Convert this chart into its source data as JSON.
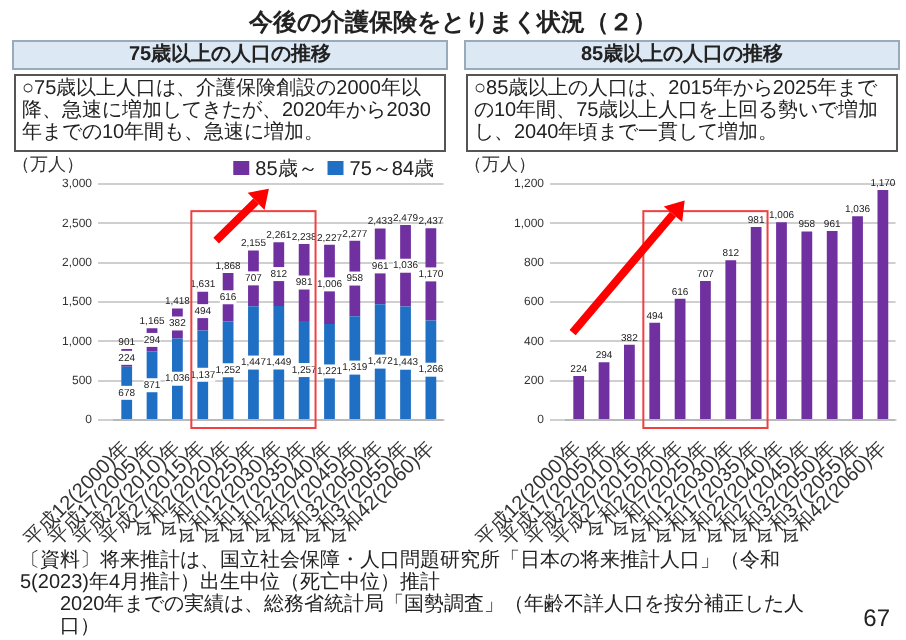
{
  "chart_data": [
    {
      "type": "other",
      "title": "今後の介護保険をとりまく状況（２）",
      "annotations": [
        "〔資料〕将来推計は、国立社会保障・人口問題研究所「日本の将来推計人口」（令和5(2023)年4月推計）出生中位（死亡中位）推計",
        "2020年までの実績は、総務省統計局「国勢調査」（年齢不詳人口を按分補正した人口）",
        "67"
      ]
    },
    {
      "type": "bar",
      "title": "75歳以上の人口の推移",
      "subtitle": "○75歳以上人口は、介護保険創設の2000年以降、急速に増加してきたが、2020年から2030年までの10年間も、急速に増加。",
      "ylabel": "（万人）",
      "categories": [
        "平成12(2000)年",
        "平成17(2005)年",
        "平成22(2010)年",
        "平成27(2015)年",
        "令和2(2020)年",
        "令和7(2025)年",
        "令和12(2030)年",
        "令和17(2035)年",
        "令和22(2040)年",
        "令和27(2045)年",
        "令和32(2050)年",
        "令和37(2055)年",
        "令和42(2060)年"
      ],
      "stacked": true,
      "series": [
        {
          "name": "75～84歳",
          "color": "#1f6fc4",
          "values": [
            678,
            871,
            1036,
            1137,
            1252,
            1447,
            1449,
            1257,
            1221,
            1319,
            1472,
            1443,
            1266
          ],
          "value_labels": [
            "678",
            "871",
            "1,036",
            "1,137",
            "1,252",
            "1,447",
            "1,449",
            "1,257",
            "1,221",
            "1,319",
            "1,472",
            "1,443",
            "1,266"
          ]
        },
        {
          "name": "85歳～",
          "color": "#7030a0",
          "values": [
            224,
            294,
            382,
            494,
            616,
            707,
            812,
            981,
            1006,
            958,
            961,
            1036,
            1170
          ],
          "value_labels": [
            "224",
            "294",
            "382",
            "494",
            "616",
            "707",
            "812",
            "981",
            "1,006",
            "958",
            "961",
            "1,036",
            "1,170"
          ]
        }
      ],
      "totals": [
        "901",
        "1,165",
        "1,418",
        "1,631",
        "1,868",
        "2,155",
        "2,261",
        "2,238",
        "2,227",
        "2,277",
        "2,433",
        "2,479",
        "2,437"
      ],
      "ylim": [
        0,
        3000
      ],
      "yticks": [
        0,
        500,
        {
          "value": 1000,
          "label": "1,000"
        },
        {
          "value": 1500,
          "label": "1,500"
        },
        {
          "value": 2000,
          "label": "2,000"
        },
        {
          "value": 2500,
          "label": "2,500"
        },
        {
          "value": 3000,
          "label": "3,000"
        }
      ],
      "grid": "y",
      "legend": "top right"
    },
    {
      "type": "bar",
      "title": "85歳以上の人口の推移",
      "subtitle": "○85歳以上の人口は、2015年から2025年までの10年間、75歳以上人口を上回る勢いで増加し、2040年頃まで一貫して増加。",
      "ylabel": "（万人）",
      "categories": [
        "平成12(2000)年",
        "平成17(2005)年",
        "平成22(2010)年",
        "平成27(2015)年",
        "令和2(2020)年",
        "令和7(2025)年",
        "令和12(2030)年",
        "令和17(2035)年",
        "令和22(2040)年",
        "令和27(2045)年",
        "令和32(2050)年",
        "令和37(2055)年",
        "令和42(2060)年"
      ],
      "values": [
        224,
        294,
        382,
        494,
        616,
        707,
        812,
        981,
        1006,
        958,
        961,
        1036,
        1170
      ],
      "color": "#7030a0",
      "value_labels": [
        "224",
        "294",
        "382",
        "494",
        "616",
        "707",
        "812",
        "981",
        "1,006",
        "958",
        "961",
        "1,036",
        "1,170"
      ],
      "ylim": [
        0,
        1200
      ],
      "yticks": [
        0,
        200,
        400,
        600,
        800,
        {
          "value": 1000,
          "label": "1,000"
        },
        {
          "value": 1200,
          "label": "1,200"
        }
      ],
      "grid": "y"
    }
  ]
}
